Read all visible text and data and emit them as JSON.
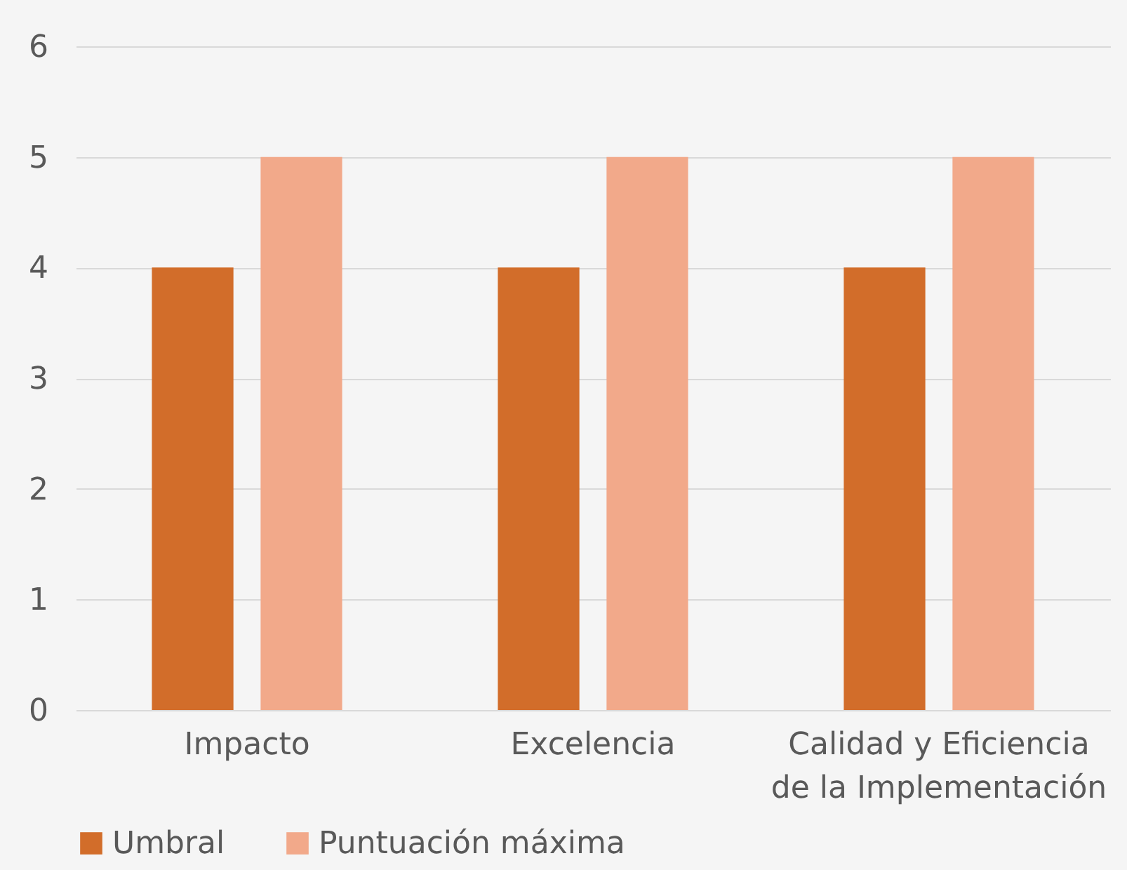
{
  "chart_data": {
    "type": "bar",
    "categories": [
      "Impacto",
      "Excelencia",
      "Calidad y Eficiencia de la Implementación"
    ],
    "series": [
      {
        "name": "Umbral",
        "color": "#d26d2a",
        "values": [
          4,
          4,
          4
        ]
      },
      {
        "name": "Puntuación máxima",
        "color": "#f2a98a",
        "values": [
          5,
          5,
          5
        ]
      }
    ],
    "ylim": [
      0,
      6
    ],
    "yticks": [
      0,
      1,
      2,
      3,
      4,
      5,
      6
    ],
    "grid": "y",
    "legend": "bottom"
  }
}
